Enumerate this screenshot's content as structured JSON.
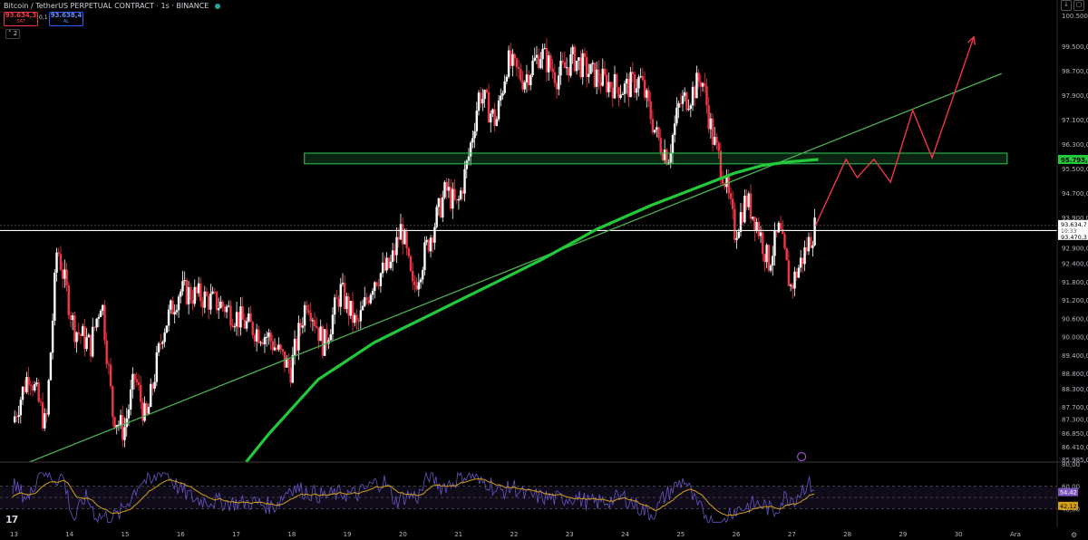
{
  "header": {
    "title": "Bitcoin / TetherUS PERPETUAL CONTRACT · 1s · BINANCE",
    "sell_price": "93.634,3",
    "sell_label": "SAT",
    "buy_price": "93.638,4",
    "buy_label": "AL",
    "spread": "0,1",
    "collapse_label": "2",
    "right_icons": [
      "arrow-down-icon",
      "square-icon"
    ]
  },
  "colors": {
    "background": "#000000",
    "up_candle": "#ffffff",
    "down_candle": "#f23645",
    "ma_line": "#22c93a",
    "trendline": "#4caf50",
    "zone": "#34c759",
    "projection": "#f23645",
    "rsi_line": "#6a55c8",
    "rsi_ma": "#d4a017"
  },
  "chart_data": {
    "type": "candlestick",
    "symbol": "Bitcoin / TetherUS PERPETUAL CONTRACT",
    "x_tick_labels": [
      "13",
      "14",
      "15",
      "16",
      "17",
      "18",
      "19",
      "20",
      "21",
      "22",
      "23",
      "24",
      "25",
      "26",
      "27",
      "28",
      "29",
      "30",
      "Ara"
    ],
    "y_tick_labels": [
      "100.500,0",
      "99.500,0",
      "98.700,0",
      "97.900,0",
      "97.100,0",
      "96.300,0",
      "95.500,0",
      "94.700,0",
      "93.900,0",
      "92.900,0",
      "92.400,0",
      "91.800,0",
      "91.200,0",
      "90.600,0",
      "90.000,0",
      "89.400,0",
      "88.800,0",
      "88.300,0",
      "87.700,0",
      "87.300,0",
      "86.850,0",
      "86.410,0",
      "85.985,0"
    ],
    "ylim": [
      85900,
      100650
    ],
    "price_path": [
      {
        "x": 13.0,
        "y": 87200
      },
      {
        "x": 13.3,
        "y": 88900
      },
      {
        "x": 13.6,
        "y": 87000
      },
      {
        "x": 13.8,
        "y": 93000
      },
      {
        "x": 14.1,
        "y": 90300
      },
      {
        "x": 14.4,
        "y": 89700
      },
      {
        "x": 14.6,
        "y": 91300
      },
      {
        "x": 14.8,
        "y": 87500
      },
      {
        "x": 15.0,
        "y": 86900
      },
      {
        "x": 15.2,
        "y": 88700
      },
      {
        "x": 15.4,
        "y": 87200
      },
      {
        "x": 15.7,
        "y": 90200
      },
      {
        "x": 16.0,
        "y": 91500
      },
      {
        "x": 16.4,
        "y": 91300
      },
      {
        "x": 16.8,
        "y": 91000
      },
      {
        "x": 17.2,
        "y": 90400
      },
      {
        "x": 17.6,
        "y": 90000
      },
      {
        "x": 18.0,
        "y": 88900
      },
      {
        "x": 18.3,
        "y": 91300
      },
      {
        "x": 18.6,
        "y": 89700
      },
      {
        "x": 18.9,
        "y": 91500
      },
      {
        "x": 19.2,
        "y": 90300
      },
      {
        "x": 19.5,
        "y": 91900
      },
      {
        "x": 19.8,
        "y": 92300
      },
      {
        "x": 20.0,
        "y": 93600
      },
      {
        "x": 20.2,
        "y": 91500
      },
      {
        "x": 20.5,
        "y": 93200
      },
      {
        "x": 20.8,
        "y": 94800
      },
      {
        "x": 21.0,
        "y": 94200
      },
      {
        "x": 21.2,
        "y": 95800
      },
      {
        "x": 21.4,
        "y": 98000
      },
      {
        "x": 21.7,
        "y": 97000
      },
      {
        "x": 21.9,
        "y": 99000
      },
      {
        "x": 22.2,
        "y": 98400
      },
      {
        "x": 22.5,
        "y": 99300
      },
      {
        "x": 22.8,
        "y": 98500
      },
      {
        "x": 23.1,
        "y": 99100
      },
      {
        "x": 23.4,
        "y": 98600
      },
      {
        "x": 23.7,
        "y": 98300
      },
      {
        "x": 24.0,
        "y": 98100
      },
      {
        "x": 24.3,
        "y": 98400
      },
      {
        "x": 24.6,
        "y": 96500
      },
      {
        "x": 24.8,
        "y": 95900
      },
      {
        "x": 25.0,
        "y": 97600
      },
      {
        "x": 25.2,
        "y": 97900
      },
      {
        "x": 25.4,
        "y": 98500
      },
      {
        "x": 25.6,
        "y": 96500
      },
      {
        "x": 25.8,
        "y": 95300
      },
      {
        "x": 26.0,
        "y": 93400
      },
      {
        "x": 26.2,
        "y": 94500
      },
      {
        "x": 26.4,
        "y": 93700
      },
      {
        "x": 26.6,
        "y": 92400
      },
      {
        "x": 26.8,
        "y": 93500
      },
      {
        "x": 27.0,
        "y": 91600
      },
      {
        "x": 27.2,
        "y": 92500
      },
      {
        "x": 27.45,
        "y": 93634
      }
    ],
    "moving_average": [
      {
        "x": 17.2,
        "y": 85900
      },
      {
        "x": 17.6,
        "y": 86800
      },
      {
        "x": 18.0,
        "y": 87600
      },
      {
        "x": 18.5,
        "y": 88600
      },
      {
        "x": 19.0,
        "y": 89200
      },
      {
        "x": 19.5,
        "y": 89800
      },
      {
        "x": 20.0,
        "y": 90250
      },
      {
        "x": 20.5,
        "y": 90700
      },
      {
        "x": 21.0,
        "y": 91150
      },
      {
        "x": 21.5,
        "y": 91600
      },
      {
        "x": 22.0,
        "y": 92050
      },
      {
        "x": 22.5,
        "y": 92500
      },
      {
        "x": 23.0,
        "y": 93000
      },
      {
        "x": 23.5,
        "y": 93500
      },
      {
        "x": 24.0,
        "y": 93900
      },
      {
        "x": 24.5,
        "y": 94300
      },
      {
        "x": 25.0,
        "y": 94650
      },
      {
        "x": 25.5,
        "y": 95000
      },
      {
        "x": 26.0,
        "y": 95350
      },
      {
        "x": 26.5,
        "y": 95600
      },
      {
        "x": 27.0,
        "y": 95720
      },
      {
        "x": 27.5,
        "y": 95793
      }
    ],
    "trendline": [
      {
        "x": 13.3,
        "y": 85900
      },
      {
        "x": 30.8,
        "y": 98600
      }
    ],
    "zone": {
      "x_start": 18.25,
      "x_end": 30.9,
      "y_low": 95650,
      "y_high": 96000
    },
    "horizontal_line": 93470,
    "projection": [
      {
        "x": 27.45,
        "y": 93634
      },
      {
        "x": 28.0,
        "y": 95800
      },
      {
        "x": 28.2,
        "y": 95200
      },
      {
        "x": 28.5,
        "y": 95800
      },
      {
        "x": 28.8,
        "y": 95050
      },
      {
        "x": 29.2,
        "y": 97400
      },
      {
        "x": 29.55,
        "y": 95850
      },
      {
        "x": 30.3,
        "y": 99800
      }
    ],
    "price_labels": {
      "zone_label": "95.793,5",
      "last_price": "93.634,7",
      "countdown": "10:33",
      "line_price": "93.470,3"
    },
    "rsi": {
      "y_tick_labels": [
        "80,00",
        "60,00",
        "40,00"
      ],
      "ylim": [
        25,
        80
      ],
      "value": "54,42",
      "ma_value": "42,12",
      "band": [
        40,
        60
      ]
    }
  }
}
